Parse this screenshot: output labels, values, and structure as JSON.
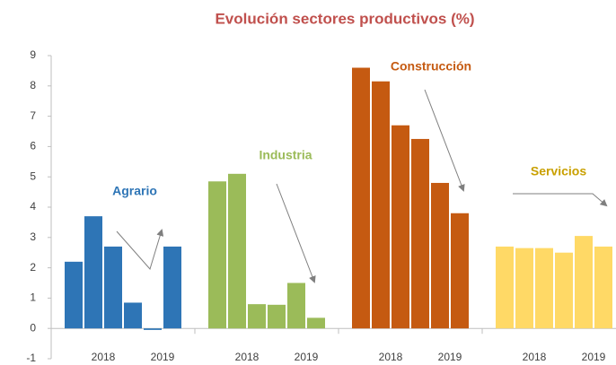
{
  "chart_data": {
    "type": "bar",
    "title": "Evolución sectores productivos (%)",
    "categories": [
      "2018",
      "2018",
      "2018",
      "2018",
      "2019",
      "2019"
    ],
    "series": [
      {
        "name": "Agrario",
        "color": "#2e75b6",
        "values": [
          2.2,
          3.7,
          2.7,
          0.85,
          -0.05,
          2.7
        ]
      },
      {
        "name": "Industria",
        "color": "#9bbb59",
        "values": [
          4.85,
          5.1,
          0.8,
          0.78,
          1.5,
          0.35
        ]
      },
      {
        "name": "Construcción",
        "color": "#c55a11",
        "values": [
          8.6,
          8.15,
          6.7,
          6.25,
          4.8,
          3.8
        ]
      },
      {
        "name": "Servicios",
        "color": "#ffd966",
        "values": [
          2.7,
          2.65,
          2.65,
          2.5,
          3.05,
          2.7
        ]
      }
    ],
    "ylim": [
      -1,
      9
    ],
    "yticks": [
      -1,
      0,
      1,
      2,
      3,
      4,
      5,
      6,
      7,
      8,
      9
    ],
    "grid": false
  }
}
